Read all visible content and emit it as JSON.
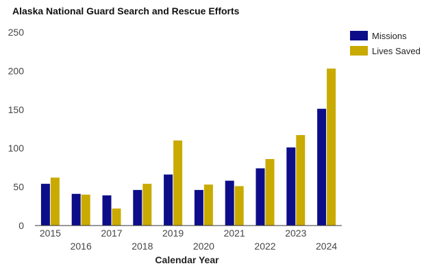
{
  "chart_data": {
    "type": "bar",
    "title": "Alaska National Guard Search and Rescue Efforts",
    "xlabel": "Calendar Year",
    "ylabel": "",
    "categories": [
      "2015",
      "2016",
      "2017",
      "2018",
      "2019",
      "2020",
      "2021",
      "2022",
      "2023",
      "2024"
    ],
    "series": [
      {
        "name": "Missions",
        "color": "#0d0d8a",
        "values": [
          54,
          41,
          39,
          46,
          66,
          46,
          58,
          74,
          101,
          151
        ]
      },
      {
        "name": "Lives Saved",
        "color": "#c9aa00",
        "values": [
          62,
          40,
          22,
          54,
          110,
          53,
          51,
          86,
          117,
          203
        ]
      }
    ],
    "ylim": [
      0,
      250
    ],
    "yticks": [
      "0",
      "50",
      "100",
      "150",
      "200",
      "250"
    ],
    "grid": false,
    "legend": "right"
  }
}
